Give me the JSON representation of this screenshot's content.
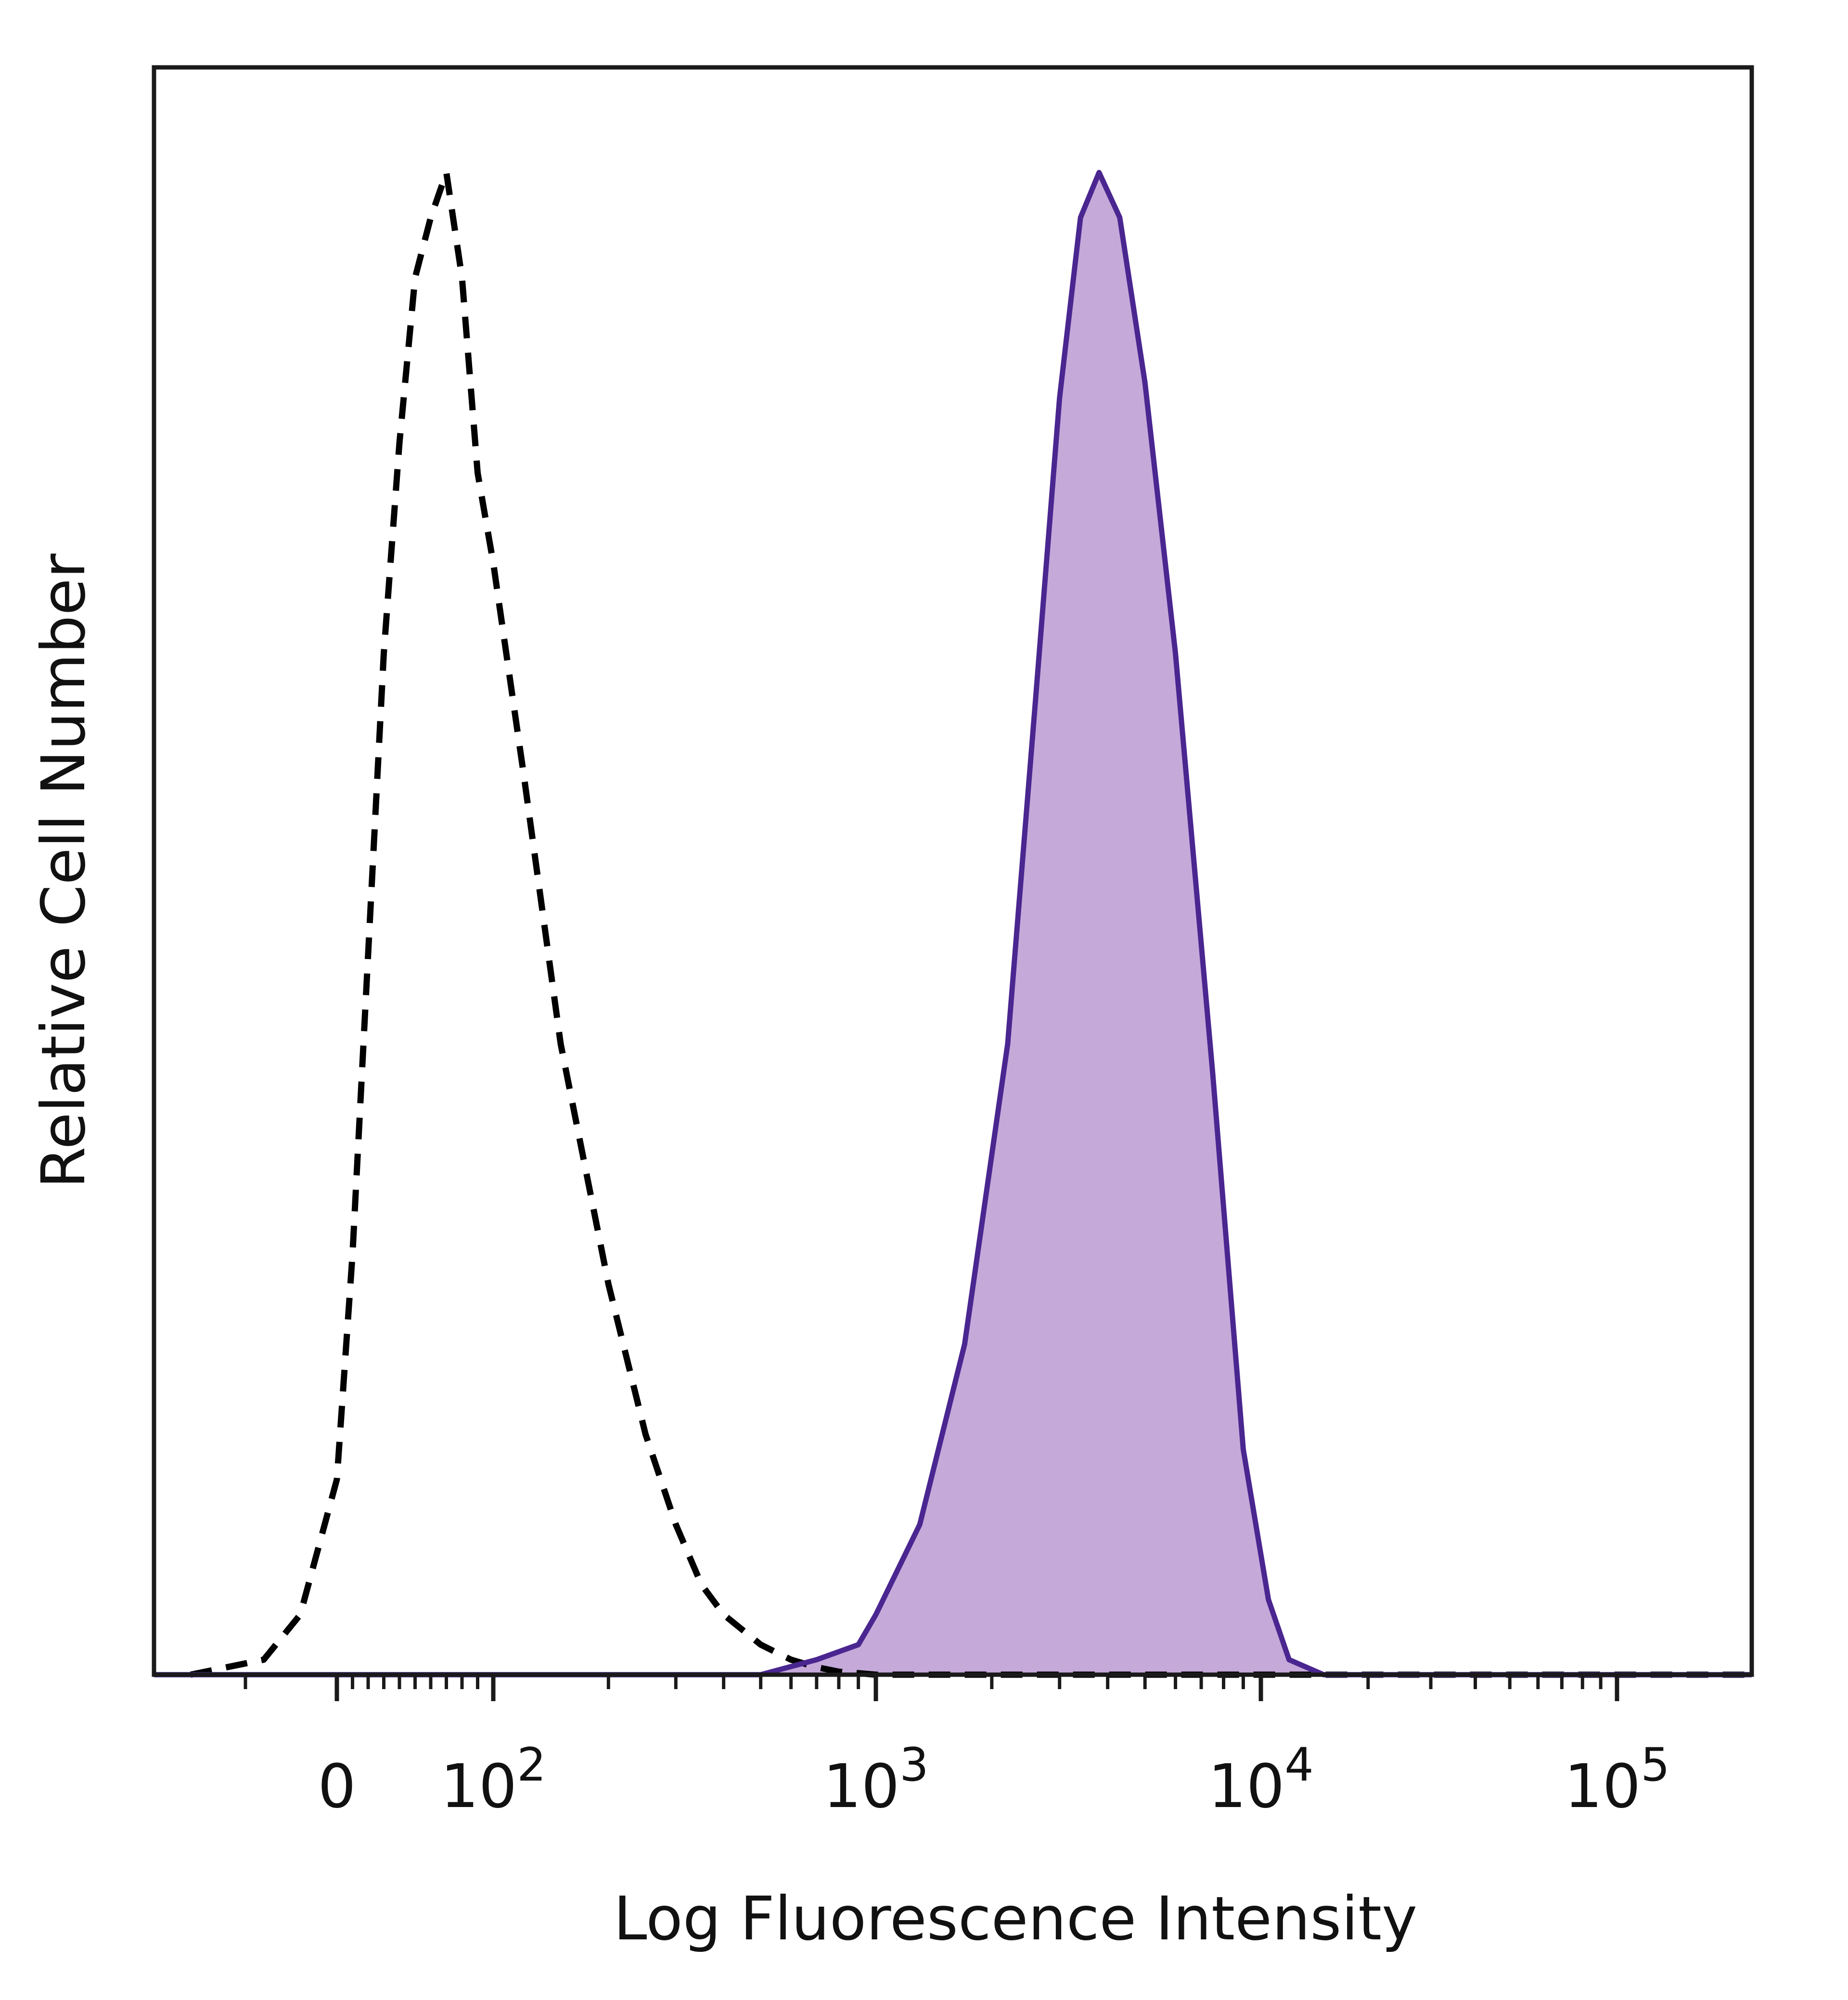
{
  "chart_data": {
    "type": "area",
    "title": "",
    "xlabel": "Log Fluorescence Intensity",
    "ylabel": "Relative Cell Number",
    "x_scale": "biexponential (log with linear region near 0)",
    "xlim": [
      -100,
      200000
    ],
    "ylim": [
      0,
      1.07
    ],
    "x_ticks": [
      {
        "value": 0,
        "base": "0",
        "exp": ""
      },
      {
        "value": 100,
        "base": "10",
        "exp": "2"
      },
      {
        "value": 1000,
        "base": "10",
        "exp": "3"
      },
      {
        "value": 10000,
        "base": "10",
        "exp": "4"
      },
      {
        "value": 100000,
        "base": "10",
        "exp": "5"
      }
    ],
    "grid": false,
    "legend": "none",
    "series": [
      {
        "style": "dashed",
        "color": "#000000",
        "fill": "none",
        "x": [
          -80,
          -40,
          -20,
          0,
          10,
          20,
          30,
          40,
          50,
          60,
          70,
          80,
          90,
          100,
          120,
          150,
          200,
          250,
          300,
          350,
          400,
          500,
          600,
          700,
          800,
          900,
          1000,
          2000,
          10000,
          200000
        ],
        "y": [
          0,
          0.01,
          0.04,
          0.13,
          0.28,
          0.48,
          0.68,
          0.82,
          0.93,
          0.97,
          1.0,
          0.93,
          0.8,
          0.74,
          0.6,
          0.42,
          0.26,
          0.16,
          0.1,
          0.06,
          0.04,
          0.02,
          0.01,
          0.005,
          0.002,
          0.001,
          0,
          0,
          0,
          0
        ]
      },
      {
        "style": "solid",
        "color": "#4a2690",
        "fill": "#c5a9d9",
        "x": [
          -100,
          100,
          500,
          700,
          900,
          1000,
          1300,
          1700,
          2200,
          2600,
          3000,
          3400,
          3800,
          4300,
          5000,
          6000,
          7500,
          9000,
          10500,
          12000,
          15000,
          200000
        ],
        "y": [
          0,
          0,
          0,
          0.01,
          0.02,
          0.04,
          0.1,
          0.22,
          0.42,
          0.65,
          0.85,
          0.97,
          1.0,
          0.97,
          0.86,
          0.68,
          0.4,
          0.15,
          0.05,
          0.01,
          0,
          0
        ]
      }
    ]
  }
}
